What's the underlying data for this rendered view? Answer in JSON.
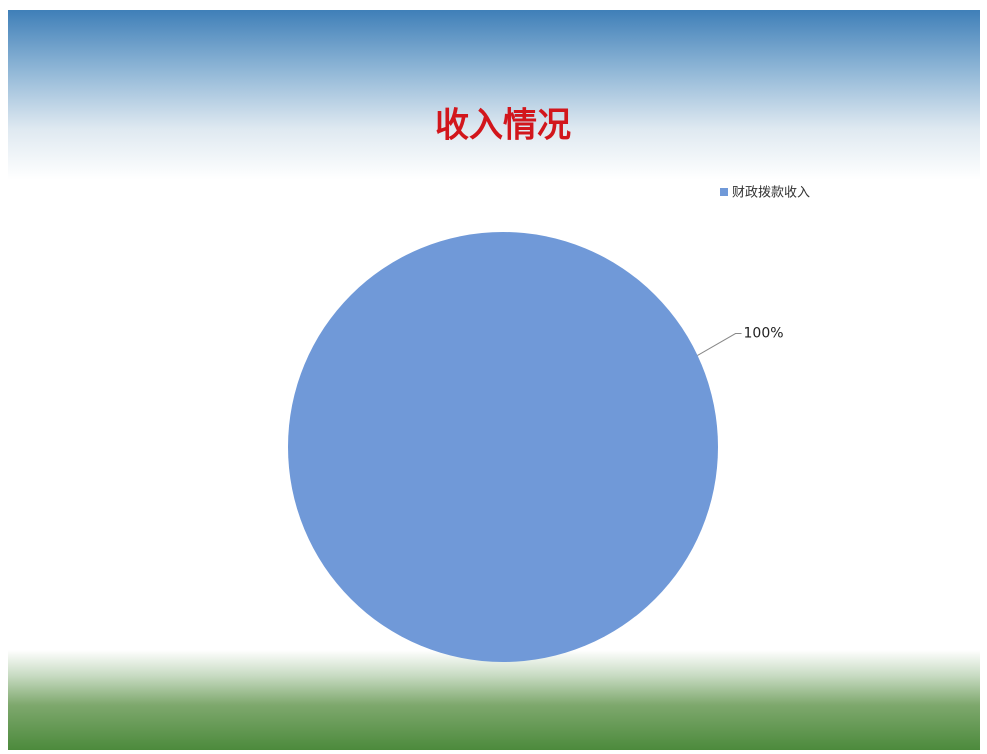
{
  "chart_data": {
    "type": "pie",
    "title": "收入情况",
    "categories": [
      "财政拨款收入"
    ],
    "values": [
      100
    ],
    "value_labels": [
      "100%"
    ],
    "colors": [
      "#7099d8"
    ],
    "legend": "top-right"
  }
}
